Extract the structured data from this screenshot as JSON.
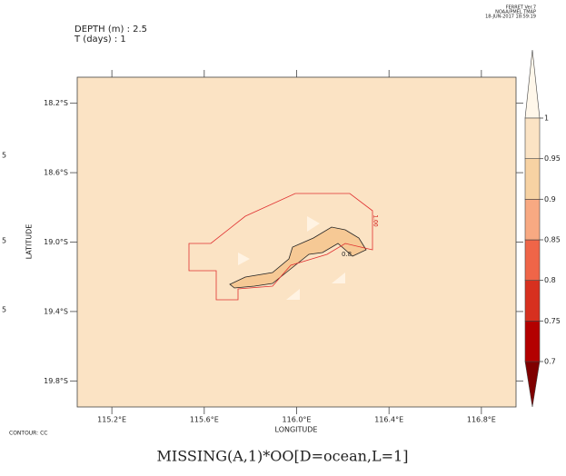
{
  "chart_data": {
    "type": "contour",
    "title": "MISSING(A,1)*OO[D=ocean,L=1]",
    "header_lines": [
      "DEPTH (m) : 2.5",
      "T (days) : 1"
    ],
    "stamp_lines": [
      "FERRET Ver.7",
      "NOAA/PMEL TMAP",
      "18-JUN-2017 18:59:19"
    ],
    "x_label": "LONGITUDE",
    "y_label": "LATITUDE",
    "footnote": "CONTOUR: CC",
    "edge_fragments": [
      "5",
      "5",
      "5"
    ],
    "contour_labels": [
      "0.8",
      "1.00"
    ],
    "xlim": [
      115.05,
      116.95
    ],
    "xticks": [
      {
        "value": 115.2,
        "label": "115.2°E"
      },
      {
        "value": 115.6,
        "label": "115.6°E"
      },
      {
        "value": 116.0,
        "label": "116.0°E"
      },
      {
        "value": 116.4,
        "label": "116.4°E"
      },
      {
        "value": 116.8,
        "label": "116.8°E"
      }
    ],
    "ylim": [
      18.05,
      19.95
    ],
    "yticks": [
      {
        "value": 18.2,
        "label": "18.2°S"
      },
      {
        "value": 18.6,
        "label": "18.6°S"
      },
      {
        "value": 19.0,
        "label": "19.0°S"
      },
      {
        "value": 19.4,
        "label": "19.4°S"
      },
      {
        "value": 19.8,
        "label": "19.8°S"
      }
    ],
    "background_color": "#fbe3c4",
    "colorbar": {
      "levels": [
        0.7,
        0.75,
        0.8,
        0.85,
        0.9,
        0.95,
        1
      ],
      "colors": [
        "#7f0000",
        "#b30000",
        "#d7301f",
        "#ef6548",
        "#f8a982",
        "#f7d2a3",
        "#fbe3c4",
        "#fff7ea"
      ]
    }
  }
}
